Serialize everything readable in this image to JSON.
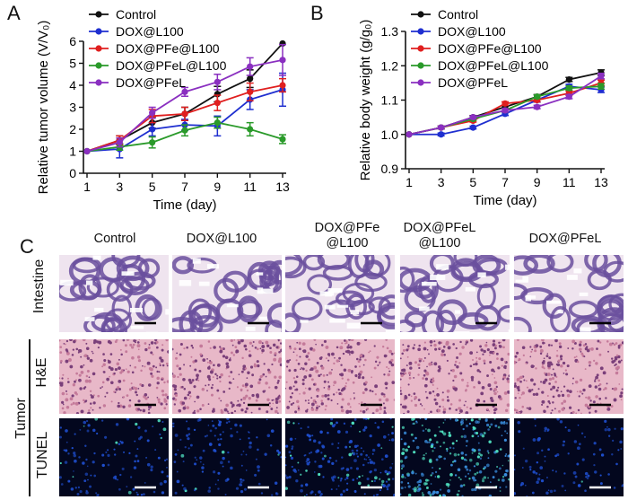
{
  "panels": {
    "A": "A",
    "B": "B",
    "C": "C"
  },
  "colors": {
    "Control": "#111111",
    "DOX@L100": "#1f2fd0",
    "DOX@PFe@L100": "#e01f1f",
    "DOX@PFeL@L100": "#2a9a2a",
    "DOX@PFeL": "#8a2fc0"
  },
  "chart_data": [
    {
      "type": "line",
      "id": "A",
      "title": "",
      "xlabel": "Time (day)",
      "ylabel": "Relative tumor volume (V/V₀)",
      "x": [
        1,
        3,
        5,
        7,
        9,
        11,
        13
      ],
      "xticks": [
        "1",
        "3",
        "5",
        "7",
        "9",
        "11",
        "13"
      ],
      "ylim": [
        0,
        6
      ],
      "yticks": [
        "0",
        "1",
        "2",
        "3",
        "4",
        "5",
        "6"
      ],
      "legend": "top-left",
      "series": [
        {
          "name": "Control",
          "values": [
            1.0,
            1.5,
            2.3,
            2.7,
            3.6,
            4.3,
            5.9
          ],
          "errors": [
            0,
            0.2,
            0.25,
            0.3,
            0.35,
            0.4,
            0.0
          ]
        },
        {
          "name": "DOX@L100",
          "values": [
            1.0,
            1.1,
            2.0,
            2.2,
            2.15,
            3.35,
            3.8
          ],
          "errors": [
            0,
            0.4,
            0.3,
            0.25,
            0.45,
            0.45,
            0.75
          ]
        },
        {
          "name": "DOX@PFe@L100",
          "values": [
            1.0,
            1.5,
            2.6,
            2.7,
            3.2,
            3.7,
            4.0
          ],
          "errors": [
            0,
            0.2,
            0.3,
            0.3,
            0.35,
            0.4,
            0.3
          ]
        },
        {
          "name": "DOX@PFeL@L100",
          "values": [
            1.0,
            1.2,
            1.4,
            1.95,
            2.3,
            2.0,
            1.55
          ],
          "errors": [
            0,
            0.15,
            0.25,
            0.25,
            0.25,
            0.3,
            0.2
          ]
        },
        {
          "name": "DOX@PFeL",
          "values": [
            1.0,
            1.4,
            2.75,
            3.7,
            4.15,
            4.85,
            5.15
          ],
          "errors": [
            0,
            0.2,
            0.25,
            0.2,
            0.35,
            0.4,
            0.7
          ]
        }
      ]
    },
    {
      "type": "line",
      "id": "B",
      "title": "",
      "xlabel": "Time (day)",
      "ylabel": "Relative body weight (g/g₀)",
      "x": [
        1,
        3,
        5,
        7,
        9,
        11,
        13
      ],
      "xticks": [
        "1",
        "3",
        "5",
        "7",
        "9",
        "11",
        "13"
      ],
      "ylim": [
        0.9,
        1.3
      ],
      "yticks": [
        "0.9",
        "1.0",
        "1.1",
        "1.2",
        "1.3"
      ],
      "legend": "top-left",
      "series": [
        {
          "name": "Control",
          "values": [
            1.0,
            1.02,
            1.05,
            1.08,
            1.11,
            1.16,
            1.18
          ],
          "errors": [
            0,
            0.004,
            0.005,
            0.005,
            0.006,
            0.006,
            0.008
          ]
        },
        {
          "name": "DOX@L100",
          "values": [
            1.0,
            1.0,
            1.02,
            1.06,
            1.1,
            1.14,
            1.13
          ],
          "errors": [
            0,
            0.004,
            0.004,
            0.005,
            0.006,
            0.006,
            0.008
          ]
        },
        {
          "name": "DOX@PFe@L100",
          "values": [
            1.0,
            1.02,
            1.04,
            1.09,
            1.1,
            1.12,
            1.15
          ],
          "errors": [
            0,
            0.004,
            0.004,
            0.005,
            0.005,
            0.006,
            0.008
          ]
        },
        {
          "name": "DOX@PFeL@L100",
          "values": [
            1.0,
            1.02,
            1.045,
            1.07,
            1.11,
            1.135,
            1.14
          ],
          "errors": [
            0,
            0.004,
            0.004,
            0.005,
            0.005,
            0.006,
            0.008
          ]
        },
        {
          "name": "DOX@PFeL",
          "values": [
            1.0,
            1.02,
            1.05,
            1.07,
            1.08,
            1.11,
            1.17
          ],
          "errors": [
            0,
            0.004,
            0.004,
            0.005,
            0.005,
            0.006,
            0.008
          ]
        }
      ]
    }
  ],
  "histology": {
    "columns": [
      "Control",
      "DOX@L100",
      "DOX@PFe\n@L100",
      "DOX@PFeL\n@L100",
      "DOX@PFeL"
    ],
    "row_labels": {
      "intestine": "Intestine",
      "he": "H&E",
      "tunel": "TUNEL",
      "tumor": "Tumor"
    }
  }
}
